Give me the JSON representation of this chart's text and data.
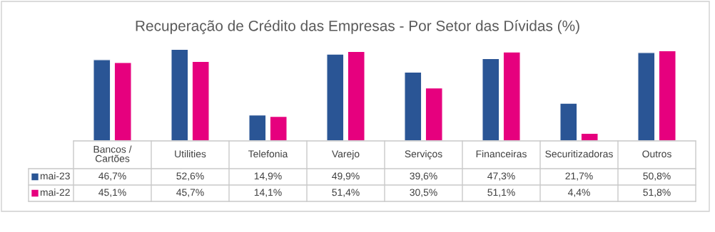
{
  "chart_data": {
    "type": "bar",
    "title": "Recuperação de Crédito das Empresas - Por Setor das Dívidas (%)",
    "categories": [
      "Bancos /\nCartões",
      "Utilities",
      "Telefonia",
      "Varejo",
      "Serviços",
      "Financeiras",
      "Securitizadoras",
      "Outros"
    ],
    "series": [
      {
        "name": "mai-23",
        "color": "#2a5595",
        "values": [
          46.7,
          52.6,
          14.9,
          49.9,
          39.6,
          47.3,
          21.7,
          50.8
        ],
        "value_labels": [
          "46,7%",
          "52,6%",
          "14,9%",
          "49,9%",
          "39,6%",
          "47,3%",
          "21,7%",
          "50,8%"
        ]
      },
      {
        "name": "mai-22",
        "color": "#e6007e",
        "values": [
          45.1,
          45.7,
          14.1,
          51.4,
          30.5,
          51.1,
          4.4,
          51.8
        ],
        "value_labels": [
          "45,1%",
          "45,7%",
          "14,1%",
          "51,4%",
          "30,5%",
          "51,1%",
          "4,4%",
          "51,8%"
        ]
      }
    ],
    "legend": "bottom left"
  }
}
